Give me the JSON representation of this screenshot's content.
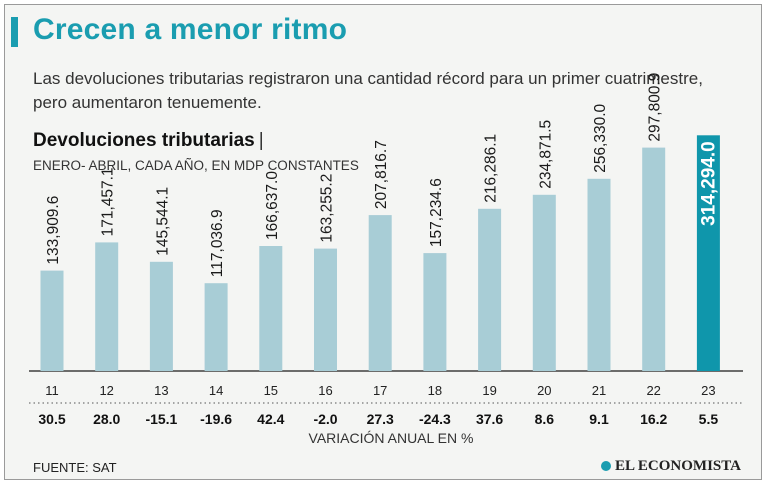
{
  "header": {
    "title": "Crecen a menor ritmo",
    "subtitle": "Las devoluciones tributarias registraron una cantidad récord para un primer cuatrimestre, pero aumentaron tenuemente."
  },
  "chart_data": {
    "type": "bar",
    "title": "Devoluciones tributarias",
    "title_separator": "|",
    "subtitle": "ENERO- ABRIL, CADA AÑO, EN MDP CONSTANTES",
    "categories": [
      "11",
      "12",
      "13",
      "14",
      "15",
      "16",
      "17",
      "18",
      "19",
      "20",
      "21",
      "22",
      "23"
    ],
    "values": [
      133909.6,
      171457.1,
      145544.1,
      117036.9,
      166637.0,
      163255.2,
      207816.7,
      157234.6,
      216286.1,
      234871.5,
      256330.0,
      297800.9,
      314294.0
    ],
    "value_labels": [
      "133,909.6",
      "171,457.1",
      "145,544.1",
      "117,036.9",
      "166,637.0",
      "163,255.2",
      "207,816.7",
      "157,234.6",
      "216,286.1",
      "234,871.5",
      "256,330.0",
      "297,800.9",
      "314,294.0"
    ],
    "variation": [
      "30.5",
      "28.0",
      "-15.1",
      "-19.6",
      "42.4",
      "-2.0",
      "27.3",
      "-24.3",
      "37.6",
      "8.6",
      "9.1",
      "16.2",
      "5.5"
    ],
    "variation_label": "VARIACIÓN ANUAL EN %",
    "ylim": [
      0,
      320000
    ],
    "grid": false,
    "colors": {
      "bar": "#a8cdd6",
      "highlight": "#0f96ab",
      "highlight_label": "#ffffff",
      "label": "#1a1a1a"
    },
    "highlight_index": 12
  },
  "footer": {
    "source": "FUENTE: SAT",
    "brand": "EL ECONOMISTA"
  }
}
